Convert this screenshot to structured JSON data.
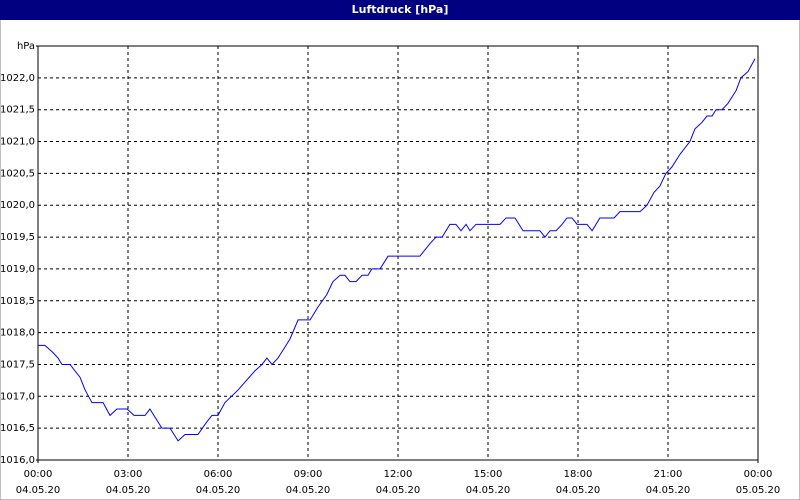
{
  "chart_data": {
    "type": "line",
    "title": "Luftdruck [hPa]",
    "x": [
      0,
      0.23,
      0.47,
      0.67,
      0.8,
      1.07,
      1.23,
      1.4,
      1.57,
      1.8,
      2.17,
      2.4,
      2.63,
      2.97,
      3.2,
      3.57,
      3.73,
      4.13,
      4.4,
      4.67,
      4.9,
      5.33,
      5.63,
      5.8,
      6,
      6.23,
      6.67,
      7.23,
      7.47,
      7.63,
      7.8,
      8,
      8.4,
      8.67,
      9.07,
      9.33,
      9.63,
      9.83,
      10.07,
      10.23,
      10.4,
      10.6,
      10.8,
      11,
      11.13,
      11.4,
      11.67,
      12.73,
      13.07,
      13.27,
      13.47,
      13.73,
      13.93,
      14.1,
      14.27,
      14.4,
      14.6,
      15.4,
      15.6,
      15.9,
      16.17,
      16.73,
      16.9,
      17.07,
      17.27,
      17.47,
      17.63,
      17.8,
      17.97,
      18.3,
      18.47,
      18.73,
      19.2,
      19.4,
      20.07,
      20.3,
      20.53,
      20.73,
      20.93,
      21.13,
      21.4,
      21.73,
      21.9,
      22.13,
      22.3,
      22.47,
      22.6,
      22.8,
      23,
      23.27,
      23.43,
      23.67,
      23.9
    ],
    "series": [
      {
        "color": "#0000ff",
        "values": [
          1017.8,
          1017.8,
          1017.7,
          1017.6,
          1017.5,
          1017.5,
          1017.4,
          1017.3,
          1017.1,
          1016.9,
          1016.9,
          1016.7,
          1016.8,
          1016.8,
          1016.7,
          1016.7,
          1016.8,
          1016.5,
          1016.5,
          1016.3,
          1016.4,
          1016.4,
          1016.6,
          1016.7,
          1016.7,
          1016.9,
          1017.1,
          1017.4,
          1017.5,
          1017.6,
          1017.5,
          1017.6,
          1017.9,
          1018.2,
          1018.2,
          1018.4,
          1018.6,
          1018.8,
          1018.9,
          1018.9,
          1018.8,
          1018.8,
          1018.9,
          1018.9,
          1019.0,
          1019.0,
          1019.2,
          1019.2,
          1019.4,
          1019.5,
          1019.5,
          1019.7,
          1019.7,
          1019.6,
          1019.7,
          1019.6,
          1019.7,
          1019.7,
          1019.8,
          1019.8,
          1019.6,
          1019.6,
          1019.5,
          1019.6,
          1019.6,
          1019.7,
          1019.8,
          1019.8,
          1019.7,
          1019.7,
          1019.6,
          1019.8,
          1019.8,
          1019.9,
          1019.9,
          1020.0,
          1020.2,
          1020.3,
          1020.5,
          1020.6,
          1020.8,
          1021.0,
          1021.2,
          1021.3,
          1021.4,
          1021.4,
          1021.5,
          1021.5,
          1021.6,
          1021.8,
          1022.0,
          1022.1,
          1022.3
        ]
      }
    ],
    "xlim": [
      0,
      24
    ],
    "xticks": [
      {
        "value": 0,
        "label": "00:00"
      },
      {
        "value": 3,
        "label": "03:00"
      },
      {
        "value": 6,
        "label": "06:00"
      },
      {
        "value": 9,
        "label": "09:00"
      },
      {
        "value": 12,
        "label": "12:00"
      },
      {
        "value": 15,
        "label": "15:00"
      },
      {
        "value": 18,
        "label": "18:00"
      },
      {
        "value": 21,
        "label": "21:00"
      },
      {
        "value": 24,
        "label": "00:00"
      }
    ],
    "xtick_dates": [
      "04.05.20",
      "04.05.20",
      "04.05.20",
      "04.05.20",
      "04.05.20",
      "04.05.20",
      "04.05.20",
      "04.05.20",
      "05.05.20"
    ],
    "ylim": [
      1016,
      1022.5
    ],
    "yticks": [
      {
        "value": 1016,
        "label": "1016,0"
      },
      {
        "value": 1016.5,
        "label": "1016,5"
      },
      {
        "value": 1017,
        "label": "1017,0"
      },
      {
        "value": 1017.5,
        "label": "1017,5"
      },
      {
        "value": 1018,
        "label": "1018,0"
      },
      {
        "value": 1018.5,
        "label": "1018,5"
      },
      {
        "value": 1019,
        "label": "1019,0"
      },
      {
        "value": 1019.5,
        "label": "1019,5"
      },
      {
        "value": 1020,
        "label": "1020,0"
      },
      {
        "value": 1020.5,
        "label": "1020,5"
      },
      {
        "value": 1021,
        "label": "1021,0"
      },
      {
        "value": 1021.5,
        "label": "1021,5"
      },
      {
        "value": 1022,
        "label": "1022,0"
      },
      {
        "value": 1022.5,
        "label": "hPa"
      }
    ],
    "grid": true
  }
}
